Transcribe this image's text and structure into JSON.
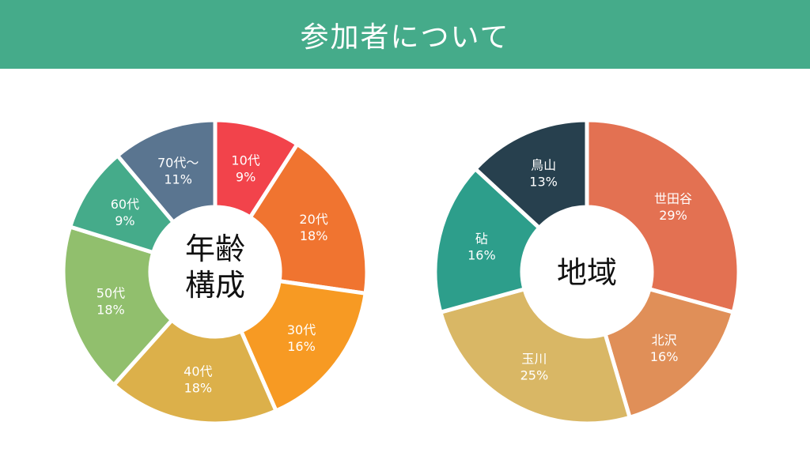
{
  "header": {
    "title": "参加者について"
  },
  "chart_data": [
    {
      "type": "pie",
      "center_label": [
        "年齢",
        "構成"
      ],
      "slices": [
        {
          "label": "10代",
          "value": 9,
          "display": "9%",
          "color": "#f2434b"
        },
        {
          "label": "20代",
          "value": 18,
          "display": "18%",
          "color": "#f07430"
        },
        {
          "label": "30代",
          "value": 16,
          "display": "16%",
          "color": "#f79a23"
        },
        {
          "label": "40代",
          "value": 18,
          "display": "18%",
          "color": "#dcb04a"
        },
        {
          "label": "50代",
          "value": 18,
          "display": "18%",
          "color": "#91bf6d"
        },
        {
          "label": "60代",
          "value": 9,
          "display": "9%",
          "color": "#45ab8a"
        },
        {
          "label": "70代〜",
          "value": 11,
          "display": "11%",
          "color": "#5a7590"
        }
      ]
    },
    {
      "type": "pie",
      "center_label": [
        "地域"
      ],
      "slices": [
        {
          "label": "世田谷",
          "value": 29,
          "display": "29%",
          "color": "#e37152"
        },
        {
          "label": "北沢",
          "value": 16,
          "display": "16%",
          "color": "#e08f58"
        },
        {
          "label": "玉川",
          "value": 25,
          "display": "25%",
          "color": "#d9b765"
        },
        {
          "label": "砧",
          "value": 16,
          "display": "16%",
          "color": "#2d9e8b"
        },
        {
          "label": "鳥山",
          "value": 13,
          "display": "13%",
          "color": "#27404e"
        }
      ]
    }
  ]
}
